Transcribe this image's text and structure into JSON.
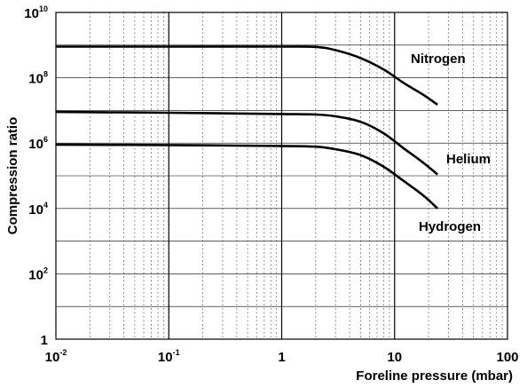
{
  "chart_data": {
    "type": "line",
    "xscale": "log",
    "yscale": "log",
    "xlabel": "Foreline pressure (mbar)",
    "ylabel": "Compression ratio",
    "xlim": [
      0.01,
      100
    ],
    "ylim": [
      1,
      10000000000
    ],
    "x_ticks": [
      {
        "base": "10",
        "exp": "-2",
        "value": 0.01
      },
      {
        "base": "10",
        "exp": "-1",
        "value": 0.1
      },
      {
        "base": "1",
        "exp": "",
        "value": 1
      },
      {
        "base": "10",
        "exp": "",
        "value": 10
      },
      {
        "base": "100",
        "exp": "",
        "value": 100
      }
    ],
    "y_ticks": [
      {
        "base": "1",
        "exp": "",
        "value": 1
      },
      {
        "base": "10",
        "exp": "2",
        "value": 100
      },
      {
        "base": "10",
        "exp": "4",
        "value": 10000
      },
      {
        "base": "10",
        "exp": "6",
        "value": 1000000
      },
      {
        "base": "10",
        "exp": "8",
        "value": 100000000
      },
      {
        "base": "10",
        "exp": "10",
        "value": 10000000000
      }
    ],
    "grid": true,
    "series": [
      {
        "name": "Nitrogen",
        "x": [
          0.01,
          0.1,
          1,
          2,
          3,
          5,
          8,
          12,
          18,
          24
        ],
        "y": [
          900000000,
          900000000,
          900000000,
          880000000,
          700000000,
          400000000,
          180000000,
          70000000,
          30000000,
          15000000
        ]
      },
      {
        "name": "Helium",
        "x": [
          0.01,
          0.1,
          1,
          2,
          3,
          5,
          8,
          12,
          18,
          24
        ],
        "y": [
          9000000,
          8500000,
          7800000,
          7500000,
          6600000,
          4500000,
          2000000,
          700000,
          250000,
          110000
        ]
      },
      {
        "name": "Hydrogen",
        "x": [
          0.01,
          0.1,
          1,
          2,
          3,
          5,
          8,
          12,
          18,
          24
        ],
        "y": [
          900000,
          870000,
          820000,
          780000,
          650000,
          430000,
          190000,
          70000,
          25000,
          10000
        ]
      }
    ]
  }
}
